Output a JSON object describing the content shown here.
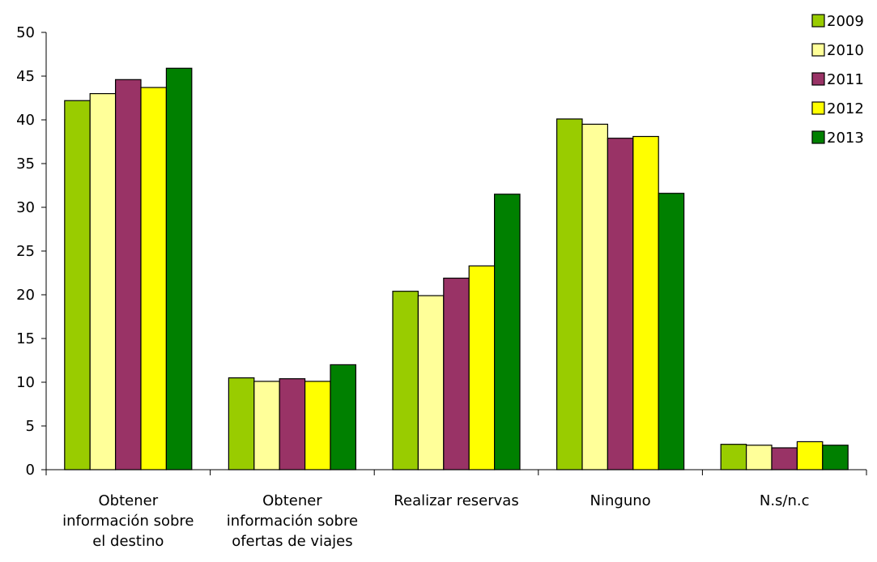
{
  "chart_data": {
    "type": "bar",
    "title": "",
    "xlabel": "",
    "ylabel": "",
    "ylim": [
      0,
      50
    ],
    "yticks": [
      0,
      5,
      10,
      15,
      20,
      25,
      30,
      35,
      40,
      45,
      50
    ],
    "grid": false,
    "legend_position": "top-right",
    "categories": [
      [
        "Obtener",
        "información sobre",
        "el destino"
      ],
      [
        "Obtener",
        "información sobre",
        "ofertas de viajes"
      ],
      [
        "Realizar reservas"
      ],
      [
        "Ninguno"
      ],
      [
        "N.s/n.c"
      ]
    ],
    "series": [
      {
        "name": "2009",
        "color": "#99cc00",
        "values": [
          42.2,
          10.5,
          20.4,
          40.1,
          2.9
        ]
      },
      {
        "name": "2010",
        "color": "#ffff99",
        "values": [
          43.0,
          10.1,
          19.9,
          39.5,
          2.8
        ]
      },
      {
        "name": "2011",
        "color": "#993366",
        "values": [
          44.6,
          10.4,
          21.9,
          37.9,
          2.5
        ]
      },
      {
        "name": "2012",
        "color": "#ffff00",
        "values": [
          43.7,
          10.1,
          23.3,
          38.1,
          3.2
        ]
      },
      {
        "name": "2013",
        "color": "#008000",
        "values": [
          45.9,
          12.0,
          31.5,
          31.6,
          2.8
        ]
      }
    ]
  }
}
